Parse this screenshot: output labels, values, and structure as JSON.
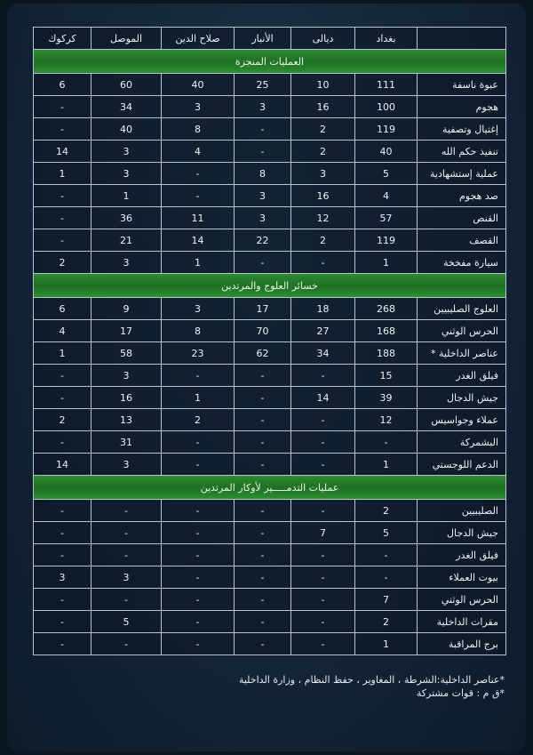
{
  "columns": [
    "",
    "بغداد",
    "ديالى",
    "الأنبار",
    "صلاح الدين",
    "الموصل",
    "كركوك"
  ],
  "sections": [
    {
      "title": "العمليات المنجزة",
      "rows": [
        {
          "label": "عبوة ناسفة",
          "values": [
            "111",
            "10",
            "25",
            "40",
            "60",
            "6"
          ]
        },
        {
          "label": "هجوم",
          "values": [
            "100",
            "16",
            "3",
            "3",
            "34",
            "-"
          ]
        },
        {
          "label": "إغتيال وتصفية",
          "values": [
            "119",
            "2",
            "-",
            "8",
            "40",
            "-"
          ]
        },
        {
          "label": "تنفيذ حكم الله",
          "values": [
            "40",
            "2",
            "-",
            "4",
            "3",
            "14"
          ]
        },
        {
          "label": "عملية إستشهادية",
          "values": [
            "5",
            "3",
            "8",
            "-",
            "3",
            "1"
          ]
        },
        {
          "label": "صد هجوم",
          "values": [
            "4",
            "16",
            "3",
            "-",
            "1",
            "-"
          ]
        },
        {
          "label": "القنص",
          "values": [
            "57",
            "12",
            "3",
            "11",
            "36",
            "-"
          ]
        },
        {
          "label": "القصف",
          "values": [
            "119",
            "2",
            "22",
            "14",
            "21",
            "-"
          ]
        },
        {
          "label": "سيارة مفخخة",
          "values": [
            "1",
            "-",
            "-",
            "1",
            "3",
            "2"
          ]
        }
      ]
    },
    {
      "title": "خسائر العلوج والمرتدين",
      "rows": [
        {
          "label": "العلوج الصليبيين",
          "values": [
            "268",
            "18",
            "17",
            "3",
            "9",
            "6"
          ]
        },
        {
          "label": "الحرس الوثني",
          "values": [
            "168",
            "27",
            "70",
            "8",
            "17",
            "4"
          ]
        },
        {
          "label": "عناصر الداخلية *",
          "values": [
            "188",
            "34",
            "62",
            "23",
            "58",
            "1"
          ]
        },
        {
          "label": "فيلق الغدر",
          "values": [
            "15",
            "-",
            "-",
            "-",
            "3",
            "-"
          ]
        },
        {
          "label": "جيش الدجال",
          "values": [
            "39",
            "14",
            "-",
            "1",
            "16",
            "-"
          ]
        },
        {
          "label": "عملاء وجواسيس",
          "values": [
            "12",
            "-",
            "-",
            "2",
            "13",
            "2"
          ]
        },
        {
          "label": "البشمركة",
          "values": [
            "-",
            "-",
            "-",
            "-",
            "31",
            "-"
          ]
        },
        {
          "label": "الدعم اللوجستي",
          "values": [
            "1",
            "-",
            "-",
            "-",
            "3",
            "14"
          ]
        }
      ]
    },
    {
      "title": "عمليات التدمـــــير لأوكار المرتدين",
      "rows": [
        {
          "label": "الصليبيين",
          "values": [
            "2",
            "-",
            "-",
            "-",
            "-",
            "-"
          ]
        },
        {
          "label": "جيش الدجال",
          "values": [
            "5",
            "7",
            "-",
            "-",
            "-",
            "-"
          ]
        },
        {
          "label": "فيلق الغدر",
          "values": [
            "-",
            "-",
            "-",
            "-",
            "-",
            "-"
          ]
        },
        {
          "label": "بيوت العملاء",
          "values": [
            "-",
            "-",
            "-",
            "-",
            "3",
            "3"
          ]
        },
        {
          "label": "الحرس الوثني",
          "values": [
            "7",
            "-",
            "-",
            "-",
            "-",
            "-"
          ]
        },
        {
          "label": "مقرات الداخلية",
          "values": [
            "2",
            "-",
            "-",
            "-",
            "5",
            "-"
          ]
        },
        {
          "label": "برج المراقبة",
          "values": [
            "1",
            "-",
            "-",
            "-",
            "-",
            "-"
          ]
        }
      ]
    }
  ],
  "notes": [
    "*عناصر الداخلية:الشرطة ، المغاوير ، حفظ النظام ، وزارة الداخلية",
    "*ق م : قوات مشتركة"
  ]
}
